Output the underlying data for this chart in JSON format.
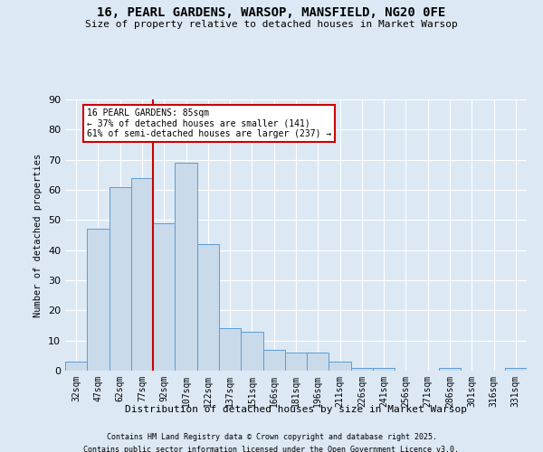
{
  "title1": "16, PEARL GARDENS, WARSOP, MANSFIELD, NG20 0FE",
  "title2": "Size of property relative to detached houses in Market Warsop",
  "xlabel": "Distribution of detached houses by size in Market Warsop",
  "ylabel": "Number of detached properties",
  "categories": [
    "32sqm",
    "47sqm",
    "62sqm",
    "77sqm",
    "92sqm",
    "107sqm",
    "122sqm",
    "137sqm",
    "151sqm",
    "166sqm",
    "181sqm",
    "196sqm",
    "211sqm",
    "226sqm",
    "241sqm",
    "256sqm",
    "271sqm",
    "286sqm",
    "301sqm",
    "316sqm",
    "331sqm"
  ],
  "heights": [
    3,
    47,
    61,
    64,
    49,
    69,
    42,
    14,
    13,
    7,
    6,
    6,
    3,
    1,
    1,
    0,
    0,
    1,
    0,
    0,
    1
  ],
  "bar_color": "#c9daea",
  "bar_edge_color": "#5b9bd5",
  "vline_color": "#cc0000",
  "vline_pos": 3.5,
  "annotation_text": "16 PEARL GARDENS: 85sqm\n← 37% of detached houses are smaller (141)\n61% of semi-detached houses are larger (237) →",
  "annotation_box_color": "#cc0000",
  "ylim": [
    0,
    90
  ],
  "yticks": [
    0,
    10,
    20,
    30,
    40,
    50,
    60,
    70,
    80,
    90
  ],
  "footnote1": "Contains HM Land Registry data © Crown copyright and database right 2025.",
  "footnote2": "Contains public sector information licensed under the Open Government Licence v3.0.",
  "bg_color": "#dce9f5",
  "plot_bg_color": "#dce9f5"
}
